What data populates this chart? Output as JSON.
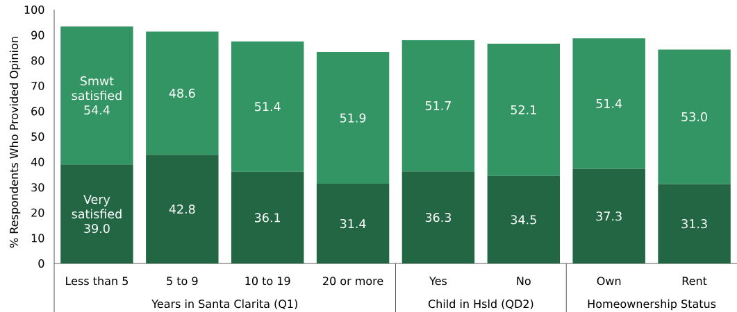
{
  "chart_data": {
    "type": "bar",
    "stacked": true,
    "ylabel": "% Respondents Who Provided Opinion",
    "categories": [
      "Less than 5",
      "5 to 9",
      "10 to 19",
      "20 or more",
      "Yes",
      "No",
      "Own",
      "Rent"
    ],
    "series": [
      {
        "name": "Very satisfied",
        "color": "#226644",
        "values": [
          39.0,
          42.8,
          36.1,
          31.4,
          36.3,
          34.5,
          37.3,
          31.3
        ],
        "value_labels": [
          "39.0",
          "42.8",
          "36.1",
          "31.4",
          "36.3",
          "34.5",
          "37.3",
          "31.3"
        ]
      },
      {
        "name": "Smwt satisfied",
        "color": "#339563",
        "values": [
          54.4,
          48.6,
          51.4,
          51.9,
          51.7,
          52.1,
          51.4,
          53.0
        ],
        "value_labels": [
          "54.4",
          "48.6",
          "51.4",
          "51.9",
          "51.7",
          "52.1",
          "51.4",
          "53.0"
        ]
      }
    ],
    "ylim": [
      0,
      100
    ],
    "yticks": [
      0,
      10,
      20,
      30,
      40,
      50,
      60,
      70,
      80,
      90,
      100
    ],
    "annotations": [
      "Years in Santa Clarita (Q1)",
      "Child in Hsld (QD2)",
      "Homeownership Status"
    ]
  }
}
